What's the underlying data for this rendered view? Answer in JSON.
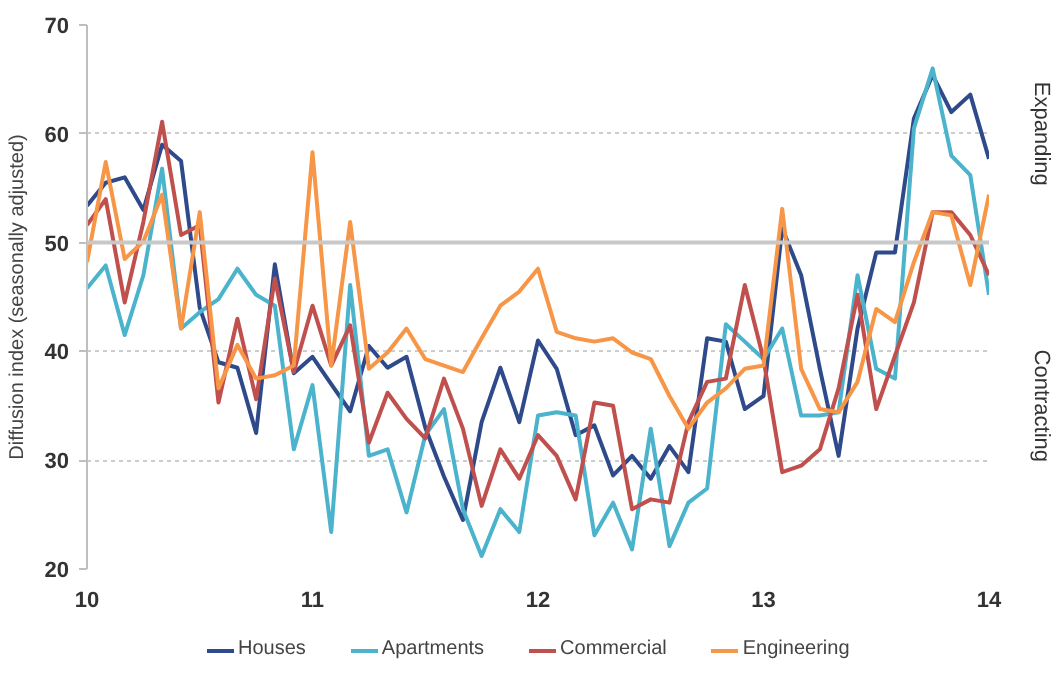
{
  "chart_data": {
    "type": "line",
    "ylabel": "Diffusion index (seasonally adjusted)",
    "x": [
      10,
      10.083,
      10.167,
      10.25,
      10.333,
      10.417,
      10.5,
      10.583,
      10.667,
      10.75,
      10.833,
      10.917,
      11,
      11.083,
      11.167,
      11.25,
      11.333,
      11.417,
      11.5,
      11.583,
      11.667,
      11.75,
      11.833,
      11.917,
      12,
      12.083,
      12.167,
      12.25,
      12.333,
      12.417,
      12.5,
      12.583,
      12.667,
      12.75,
      12.833,
      12.917,
      13,
      13.083,
      13.167,
      13.25,
      13.333,
      13.417,
      13.5,
      13.583,
      13.667,
      13.75,
      13.833,
      13.917,
      14
    ],
    "xlim": [
      10,
      14
    ],
    "xticks": [
      {
        "value": 10,
        "label": "10"
      },
      {
        "value": 11,
        "label": "11"
      },
      {
        "value": 12,
        "label": "12"
      },
      {
        "value": 13,
        "label": "13"
      },
      {
        "value": 14,
        "label": "14"
      }
    ],
    "ylim": [
      20,
      70
    ],
    "yticks": [
      20,
      30,
      40,
      50,
      60,
      70
    ],
    "grid": "y",
    "legend": "bottom",
    "line_style": "solid",
    "ref_lines": [
      {
        "axis": "y",
        "value": 50,
        "color": "#c8c8c8"
      }
    ],
    "annotations": [
      "Expanding",
      "Contracting"
    ],
    "series": [
      {
        "name": "Houses",
        "color": "#2e4a8b",
        "values": [
          53.4,
          55.5,
          56,
          53,
          59,
          57.5,
          44,
          39,
          38.5,
          32.5,
          48,
          38,
          39.5,
          37,
          34.5,
          40.5,
          38.5,
          39.5,
          33,
          28.5,
          24.5,
          33.5,
          38.5,
          33.5,
          41,
          38.4,
          32.3,
          33.2,
          28.6,
          30.4,
          28.3,
          31.3,
          28.9,
          41.2,
          40.9,
          34.7,
          35.9,
          51.3,
          47,
          38.4,
          30.4,
          42.1,
          49.1,
          49.1,
          61.4,
          65.4,
          62,
          63.6,
          57.7
        ]
      },
      {
        "name": "Apartments",
        "color": "#4bb3cc",
        "values": [
          45.8,
          47.9,
          41.5,
          47,
          56.8,
          42.1,
          43.6,
          44.8,
          47.6,
          45.2,
          44.2,
          31,
          36.9,
          23.4,
          46.1,
          30.4,
          31,
          25.2,
          32.3,
          34.7,
          25.5,
          21.2,
          25.5,
          23.4,
          34.1,
          34.4,
          34.1,
          23.1,
          26.1,
          21.8,
          32.9,
          22.1,
          26.1,
          27.4,
          42.5,
          40.9,
          39.3,
          42.1,
          34.1,
          34.1,
          34.4,
          47,
          38.4,
          37.5,
          60.5,
          66,
          58,
          56.2,
          45.2
        ]
      },
      {
        "name": "Commercial",
        "color": "#c0504d",
        "values": [
          51.6,
          54,
          44.5,
          51.9,
          61.1,
          50.7,
          51.6,
          35.3,
          43,
          35.6,
          46.7,
          38.1,
          44.2,
          38.7,
          42.4,
          31.6,
          36.2,
          33.8,
          32,
          37.5,
          32.9,
          25.8,
          31,
          28.3,
          32.3,
          30.4,
          26.4,
          35.3,
          35,
          25.5,
          26.4,
          26.1,
          33.5,
          37.2,
          37.5,
          46.1,
          39.3,
          28.9,
          29.5,
          31,
          36.6,
          45.2,
          34.7,
          39.6,
          44.5,
          52.8,
          52.8,
          50.7,
          47
        ]
      },
      {
        "name": "Engineering",
        "color": "#f79646",
        "values": [
          48.2,
          57.4,
          48.5,
          50.1,
          54.4,
          42.1,
          52.8,
          36.6,
          40.6,
          37.5,
          37.8,
          38.7,
          58.3,
          38.7,
          51.9,
          38.4,
          39.9,
          42.1,
          39.3,
          38.7,
          38.1,
          41.2,
          44.2,
          45.5,
          47.6,
          41.8,
          41.2,
          40.9,
          41.2,
          39.9,
          39.3,
          35.9,
          32.9,
          35.3,
          36.6,
          38.4,
          38.7,
          53.1,
          38.4,
          34.7,
          34.4,
          37.2,
          43.9,
          42.7,
          48.2,
          52.8,
          52.5,
          46.1,
          54.4
        ]
      }
    ]
  }
}
